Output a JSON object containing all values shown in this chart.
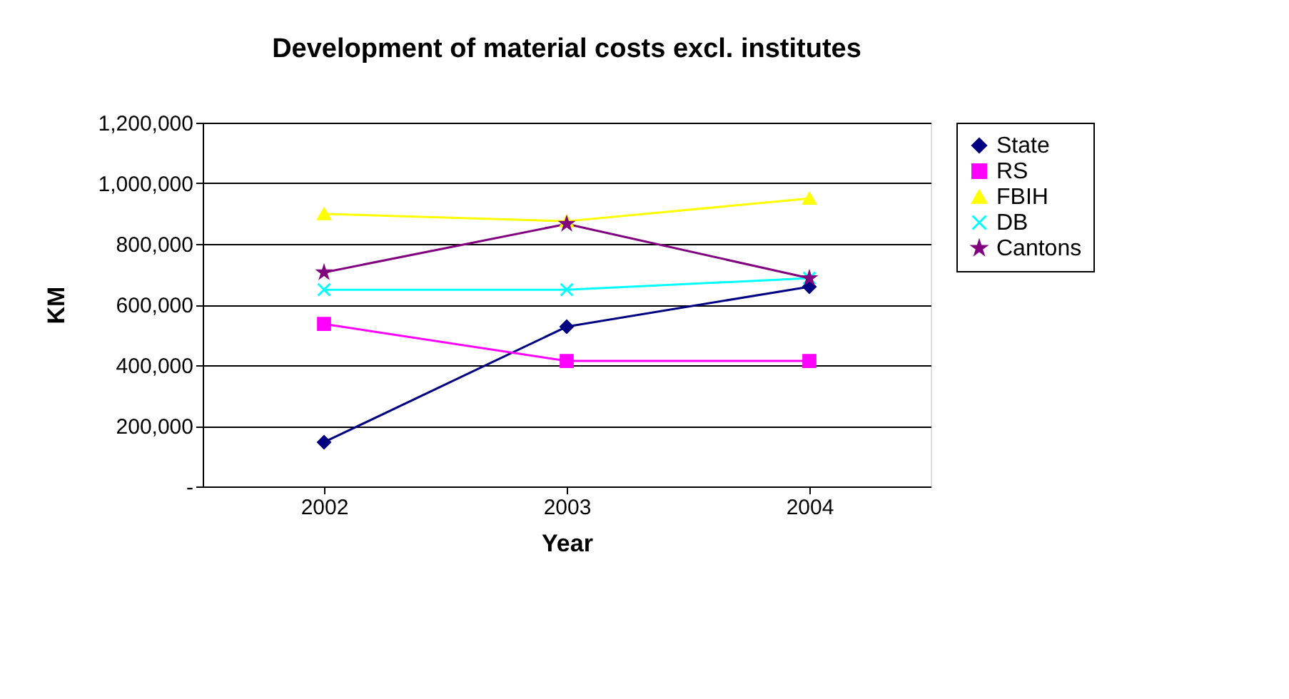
{
  "chart_data": {
    "type": "line",
    "title": "Development of material costs excl. institutes",
    "xlabel": "Year",
    "ylabel": "KM",
    "categories": [
      "2002",
      "2003",
      "2004"
    ],
    "series": [
      {
        "name": "State",
        "color": "#000080",
        "marker": "diamond",
        "values": [
          146000,
          527000,
          659000
        ]
      },
      {
        "name": "RS",
        "color": "#ff00ff",
        "marker": "square",
        "values": [
          536000,
          414000,
          414000
        ]
      },
      {
        "name": "FBIH",
        "color": "#ffff00",
        "marker": "triangle",
        "values": [
          899000,
          875000,
          950000
        ]
      },
      {
        "name": "DB",
        "color": "#00ffff",
        "marker": "cross",
        "values": [
          649000,
          649000,
          687000
        ]
      },
      {
        "name": "Cantons",
        "color": "#800080",
        "marker": "star",
        "values": [
          706000,
          866000,
          687000
        ]
      }
    ],
    "ylim": [
      0,
      1200000
    ],
    "yticks": [
      {
        "value": 0,
        "label": "-"
      },
      {
        "value": 200000,
        "label": "200,000"
      },
      {
        "value": 400000,
        "label": "400,000"
      },
      {
        "value": 600000,
        "label": "600,000"
      },
      {
        "value": 800000,
        "label": "800,000"
      },
      {
        "value": 1000000,
        "label": "1,000,000"
      },
      {
        "value": 1200000,
        "label": "1,200,000"
      }
    ],
    "grid": "y",
    "legend": "right",
    "line_style": "solid"
  }
}
